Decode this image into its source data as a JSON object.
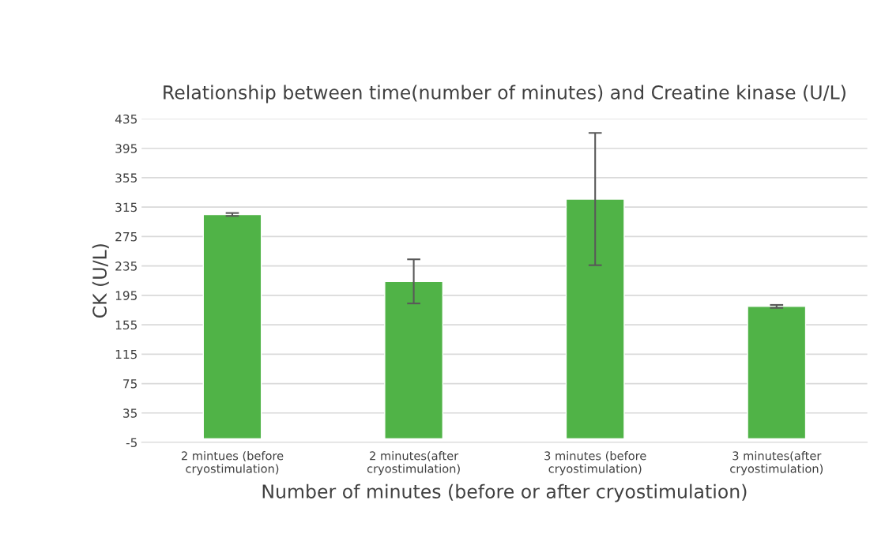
{
  "chart_data": {
    "type": "bar",
    "title": "Relationship between time(number of minutes) and Creatine kinase (U/L)",
    "xlabel": "Number of minutes (before or after cryostimulation)",
    "ylabel": "CK (U/L)",
    "categories": [
      "2 mintues (before\ncryostimulation)",
      "2 minutes(after\ncryostimulation)",
      "3 minutes (before\ncryostimulation)",
      "3 minutes(after\ncryostimulation)"
    ],
    "values": [
      305,
      214,
      326,
      180
    ],
    "errors": [
      2,
      30,
      90,
      2
    ],
    "color": "#50b347",
    "ylim": [
      -5,
      435
    ],
    "yticks": [
      -5,
      35,
      75,
      115,
      155,
      195,
      235,
      275,
      315,
      355,
      395,
      435
    ],
    "grid": "y"
  }
}
